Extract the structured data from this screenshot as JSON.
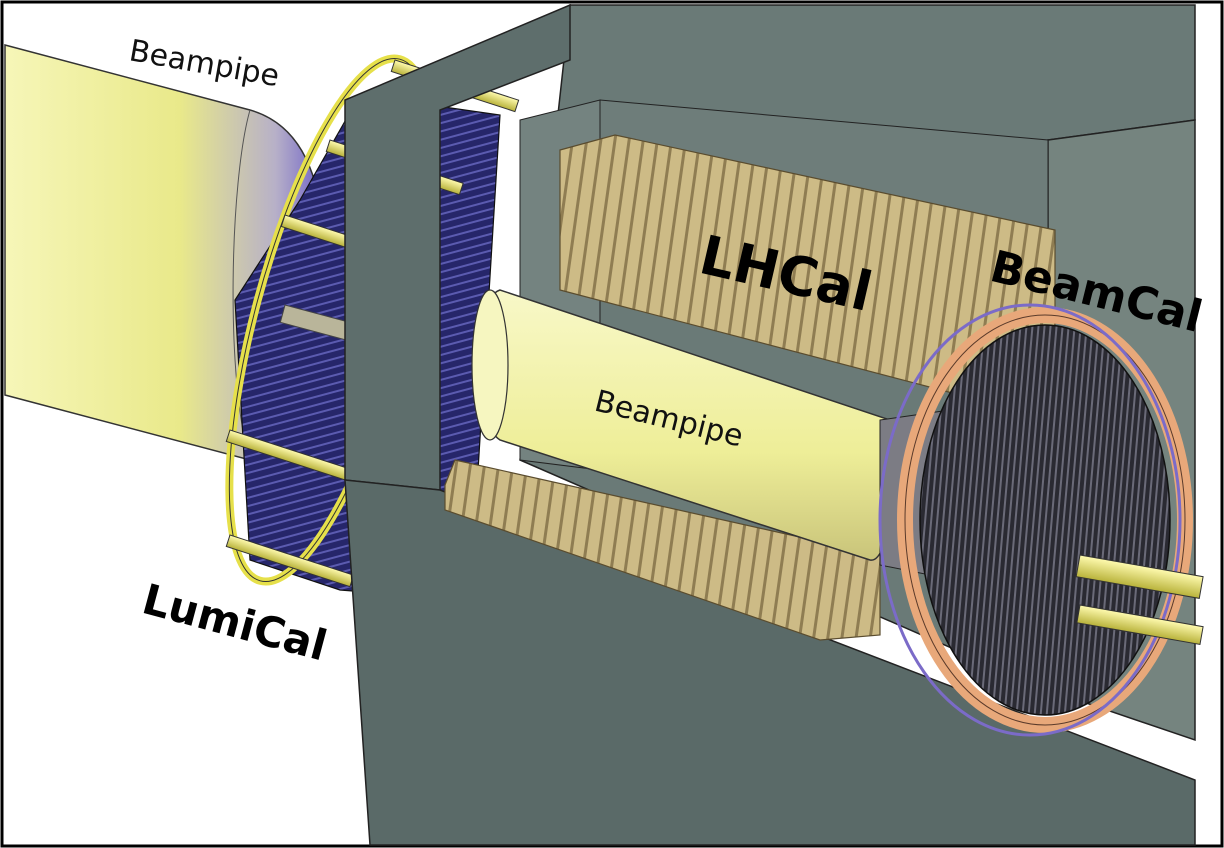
{
  "labels": {
    "beampipe_left": "Beampipe",
    "beampipe_center": "Beampipe",
    "lumical": "LumiCal",
    "lhcal": "LHCal",
    "beamcal": "BeamCal"
  },
  "colors": {
    "beampipe_light": "#f4f4a8",
    "beampipe_shade": "#7a6fc8",
    "housing": "#5e6e6c",
    "housing_light": "#7c8b87",
    "lhcal_plate": "#c9b784",
    "lumical_dark": "#1f1f5a",
    "beamcal_ring": "#e8a87a",
    "support_rod": "#e6e04a"
  }
}
